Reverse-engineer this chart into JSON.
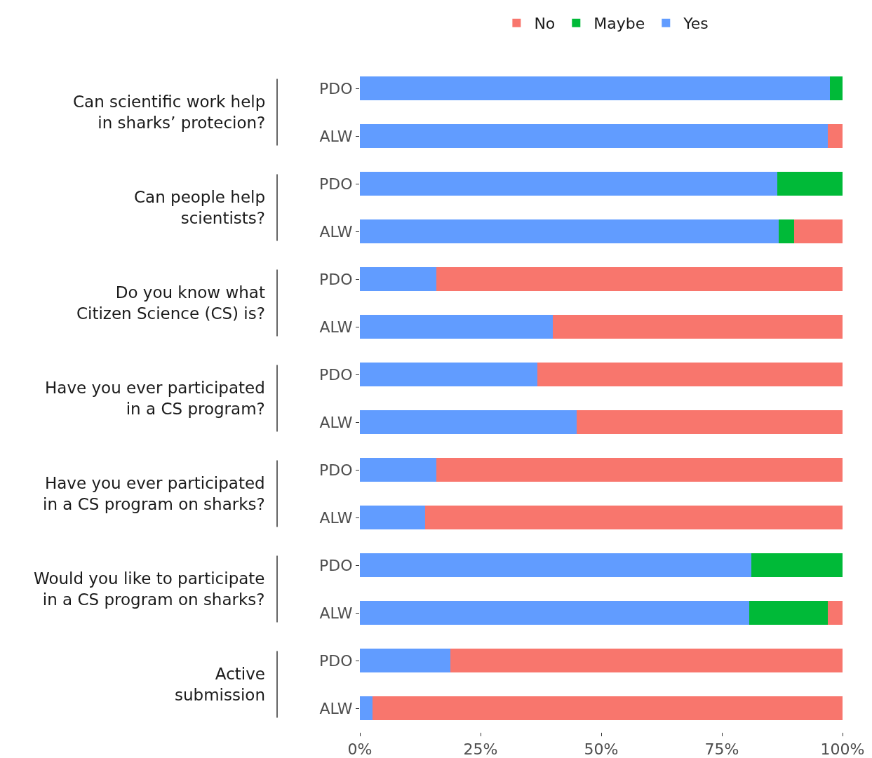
{
  "chart_data": {
    "type": "bar",
    "orientation": "horizontal",
    "stacked": true,
    "categories": [
      "PDO",
      "ALW",
      "PDO",
      "ALW",
      "PDO",
      "ALW",
      "PDO",
      "ALW",
      "PDO",
      "ALW",
      "PDO",
      "ALW",
      "PDO",
      "ALW"
    ],
    "series": [
      {
        "name": "Yes",
        "color": "#619cff",
        "values": [
          97.4,
          96.9,
          86.5,
          86.8,
          15.8,
          40.0,
          36.8,
          44.9,
          15.8,
          13.5,
          81.1,
          80.7,
          18.8,
          2.6
        ]
      },
      {
        "name": "Maybe",
        "color": "#00ba38",
        "values": [
          2.6,
          0,
          13.5,
          3.2,
          0,
          0,
          0,
          0,
          0,
          0,
          18.9,
          16.3,
          0,
          0
        ]
      },
      {
        "name": "No",
        "color": "#f8766d",
        "values": [
          0,
          3.1,
          0,
          10.0,
          84.2,
          60.0,
          63.2,
          55.1,
          84.2,
          86.5,
          0,
          3.0,
          81.2,
          97.4
        ]
      }
    ],
    "xlim": [
      0,
      100
    ],
    "xticks": [
      {
        "value": 0,
        "label": "0%"
      },
      {
        "value": 25,
        "label": "25%"
      },
      {
        "value": 50,
        "label": "50%"
      },
      {
        "value": 75,
        "label": "75%"
      },
      {
        "value": 100,
        "label": "100%"
      }
    ],
    "legend": "top",
    "annotations": [
      "Can scientific work help in sharks’ protecion?",
      "Can people help scientists?",
      "Do you know what Citizen Science (CS) is?",
      "Have you ever participated in a CS program?",
      "Have you ever participated in a CS program on sharks?",
      "Would you like to participate in a CS program on sharks?",
      "Active submission"
    ]
  }
}
